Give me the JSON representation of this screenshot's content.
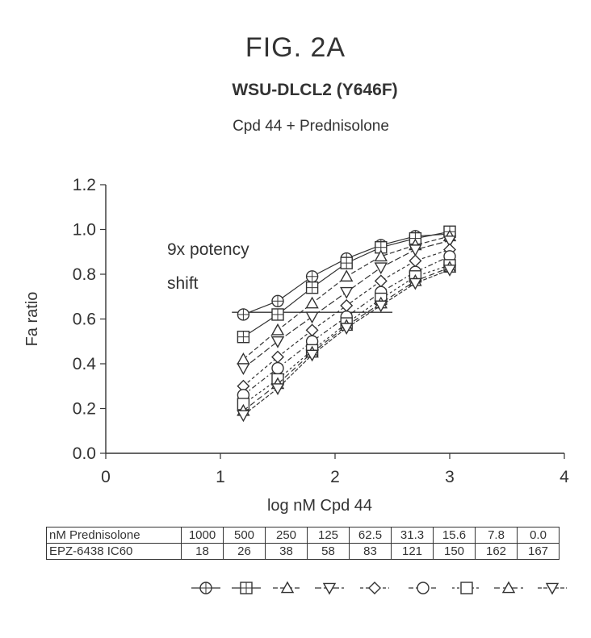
{
  "figure_label": "FIG. 2A",
  "chart_data": {
    "type": "line",
    "title": "WSU-DLCL2 (Y646F)",
    "subtitle": "Cpd 44 + Prednisolone",
    "xlabel": "log nM Cpd 44",
    "ylabel": "Fa ratio",
    "xlim": [
      0,
      4
    ],
    "ylim": [
      0.0,
      1.2
    ],
    "xticks": [
      0,
      1,
      2,
      3,
      4
    ],
    "yticks": [
      "0.0",
      "0.2",
      "0.4",
      "0.6",
      "0.8",
      "1.0",
      "1.2"
    ],
    "annotation": [
      "9x potency",
      "shift"
    ],
    "reference_line": {
      "y": 0.63,
      "x_range": [
        1.1,
        2.5
      ]
    },
    "x": [
      1.2,
      1.5,
      1.8,
      2.1,
      2.4,
      2.7,
      3.0
    ],
    "series": [
      {
        "name": "1000",
        "marker": "circle-plus",
        "values": [
          0.62,
          0.68,
          0.79,
          0.87,
          0.93,
          0.97,
          0.98
        ]
      },
      {
        "name": "500",
        "marker": "square-plus",
        "values": [
          0.52,
          0.62,
          0.74,
          0.85,
          0.92,
          0.96,
          0.99
        ]
      },
      {
        "name": "250",
        "marker": "triangle-up",
        "values": [
          0.42,
          0.55,
          0.67,
          0.79,
          0.88,
          0.93,
          0.97
        ]
      },
      {
        "name": "125",
        "marker": "triangle-down",
        "values": [
          0.38,
          0.5,
          0.61,
          0.72,
          0.83,
          0.91,
          0.95
        ]
      },
      {
        "name": "62.5",
        "marker": "diamond",
        "values": [
          0.3,
          0.43,
          0.55,
          0.66,
          0.77,
          0.86,
          0.91
        ]
      },
      {
        "name": "31.3",
        "marker": "circle",
        "values": [
          0.26,
          0.38,
          0.5,
          0.61,
          0.72,
          0.81,
          0.88
        ]
      },
      {
        "name": "15.6",
        "marker": "square",
        "values": [
          0.22,
          0.33,
          0.46,
          0.58,
          0.69,
          0.79,
          0.84
        ]
      },
      {
        "name": "7.8",
        "marker": "triangle-up",
        "values": [
          0.19,
          0.31,
          0.45,
          0.57,
          0.67,
          0.77,
          0.83
        ]
      },
      {
        "name": "0.0",
        "marker": "triangle-down",
        "values": [
          0.17,
          0.29,
          0.44,
          0.56,
          0.66,
          0.76,
          0.82
        ]
      }
    ],
    "grid": false
  },
  "table": {
    "row1_label": "nM Prednisolone",
    "row1_values": [
      "1000",
      "500",
      "250",
      "125",
      "62.5",
      "31.3",
      "15.6",
      "7.8",
      "0.0"
    ],
    "row2_label": "EPZ-6438 IC60",
    "row2_values": [
      "18",
      "26",
      "38",
      "58",
      "83",
      "121",
      "150",
      "162",
      "167"
    ]
  },
  "colors": {
    "ink": "#333333",
    "background": "#ffffff"
  }
}
